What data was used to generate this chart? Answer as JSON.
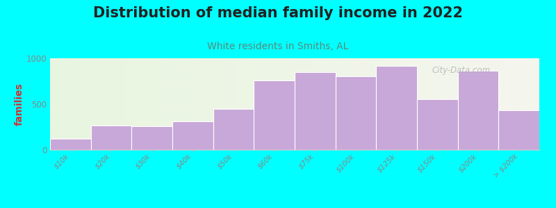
{
  "title": "Distribution of median family income in 2022",
  "subtitle": "White residents in Smiths, AL",
  "ylabel": "families",
  "categories": [
    "$10k",
    "$20k",
    "$30k",
    "$40k",
    "$50k",
    "$60k",
    "$75k",
    "$100k",
    "$125k",
    "$150k",
    "$200k",
    "> $200k"
  ],
  "values": [
    120,
    265,
    255,
    310,
    450,
    760,
    850,
    800,
    920,
    555,
    860,
    430
  ],
  "bar_color": "#c8a8d8",
  "bar_edge_color": "#ffffff",
  "background_color": "#00ffff",
  "plot_bg_left": "#e8f5e0",
  "plot_bg_right": "#f5f5ee",
  "title_color": "#222222",
  "subtitle_color": "#5a8a7a",
  "ylabel_color": "#cc3333",
  "tick_color": "#888888",
  "ylim": [
    0,
    1000
  ],
  "yticks": [
    0,
    500,
    1000
  ],
  "watermark": "City-Data.com",
  "title_fontsize": 15,
  "subtitle_fontsize": 10,
  "ylabel_fontsize": 10,
  "tick_fontsize": 7.5
}
